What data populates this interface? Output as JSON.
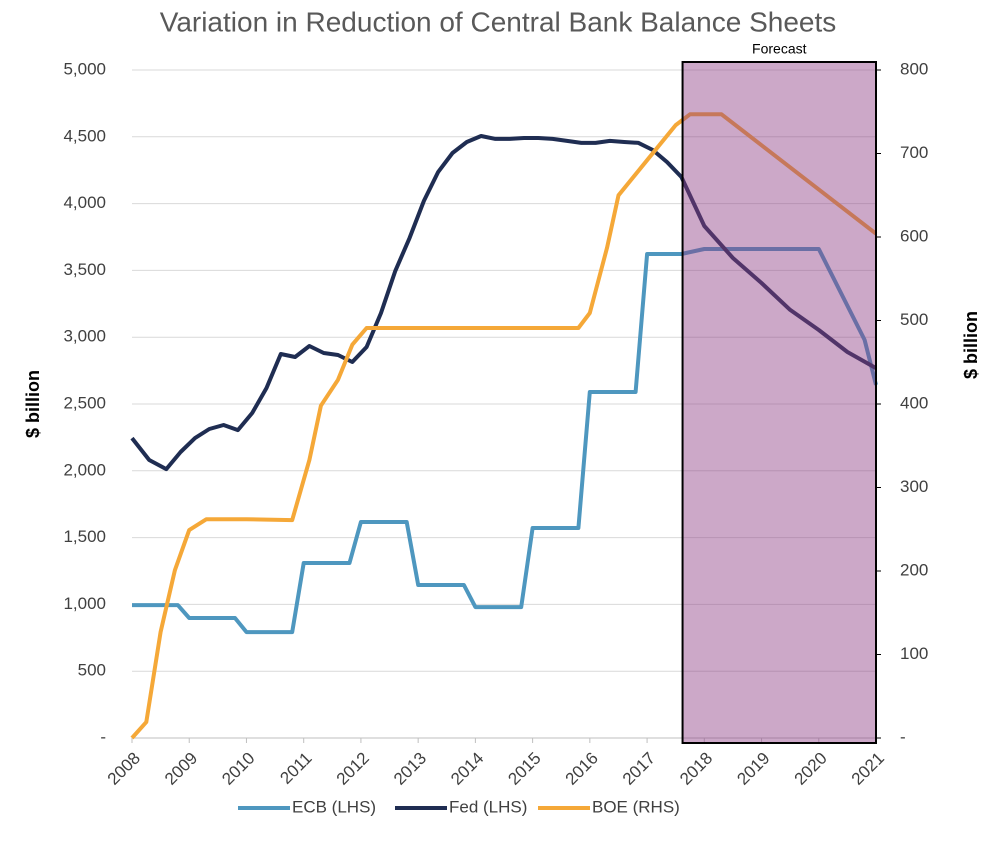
{
  "chart_data": {
    "type": "line",
    "title": "Variation in Reduction of Central Bank Balance Sheets",
    "ylabel": "$ billion",
    "y2label": "$ billion",
    "xlim": [
      2008,
      2021
    ],
    "xticks": [
      2008,
      2009,
      2010,
      2011,
      2012,
      2013,
      2014,
      2015,
      2016,
      2017,
      2018,
      2019,
      2020,
      2021
    ],
    "ylim": [
      0,
      5000
    ],
    "yticks": [
      {
        "value": 0,
        "label": "-"
      },
      500,
      {
        "value": 1000,
        "label": "1,000"
      },
      {
        "value": 1500,
        "label": "1,500"
      },
      {
        "value": 2000,
        "label": "2,000"
      },
      {
        "value": 2500,
        "label": "2,500"
      },
      {
        "value": 3000,
        "label": "3,000"
      },
      {
        "value": 3500,
        "label": "3,500"
      },
      {
        "value": 4000,
        "label": "4,000"
      },
      {
        "value": 4500,
        "label": "4,500"
      },
      {
        "value": 5000,
        "label": "5,000"
      }
    ],
    "y2lim": [
      0,
      800
    ],
    "y2ticks": [
      {
        "value": 0,
        "label": "-"
      },
      100,
      200,
      300,
      400,
      500,
      600,
      700,
      800
    ],
    "grid": true,
    "legend": "bottom",
    "forecast": {
      "label": "Forecast",
      "x_start": 2017.62,
      "color": "#8e3f86"
    },
    "series": [
      {
        "name": "ECB (LHS)",
        "color": "#4e97bf",
        "x": [
          2008.0,
          2008.8,
          2009.0,
          2009.8,
          2010.0,
          2010.8,
          2011.0,
          2011.8,
          2012.0,
          2012.8,
          2013.0,
          2013.8,
          2014.0,
          2014.8,
          2015.0,
          2015.8,
          2016.0,
          2016.8,
          2017.0,
          2017.6,
          2018.0,
          2020.0,
          2020.8,
          2021.0
        ],
        "values": [
          995,
          995,
          898,
          898,
          793,
          793,
          1310,
          1310,
          1617,
          1617,
          1145,
          1145,
          980,
          980,
          1572,
          1572,
          2590,
          2590,
          3623,
          3623,
          3660,
          3660,
          2980,
          2643
        ]
      },
      {
        "name": "Fed (LHS)",
        "color": "#1f2d52",
        "x": [
          2008.0,
          2008.3,
          2008.6,
          2008.85,
          2009.1,
          2009.35,
          2009.6,
          2009.85,
          2010.1,
          2010.35,
          2010.6,
          2010.85,
          2011.1,
          2011.35,
          2011.6,
          2011.85,
          2012.1,
          2012.35,
          2012.6,
          2012.85,
          2013.1,
          2013.35,
          2013.6,
          2013.85,
          2014.1,
          2014.35,
          2014.6,
          2014.85,
          2015.1,
          2015.35,
          2015.6,
          2015.85,
          2016.1,
          2016.35,
          2016.6,
          2016.85,
          2017.1,
          2017.35,
          2017.6,
          2018.0,
          2018.5,
          2019.0,
          2019.5,
          2020.0,
          2020.5,
          2021.0
        ],
        "values": [
          2245,
          2081,
          2013,
          2141,
          2245,
          2313,
          2343,
          2305,
          2433,
          2620,
          2874,
          2852,
          2934,
          2882,
          2867,
          2814,
          2927,
          3181,
          3496,
          3743,
          4020,
          4237,
          4379,
          4461,
          4506,
          4484,
          4484,
          4491,
          4491,
          4484,
          4469,
          4454,
          4454,
          4469,
          4461,
          4454,
          4401,
          4311,
          4199,
          3832,
          3593,
          3406,
          3204,
          3054,
          2889,
          2769
        ]
      },
      {
        "name": "BOE (RHS)",
        "color": "#f5a838",
        "axis": "y2",
        "x": [
          2008.0,
          2008.25,
          2008.5,
          2008.75,
          2009.0,
          2009.3,
          2010.0,
          2010.8,
          2011.1,
          2011.3,
          2011.6,
          2011.85,
          2012.1,
          2015.8,
          2016.0,
          2016.3,
          2016.5,
          2017.0,
          2017.5,
          2017.75,
          2018.3,
          2021.0
        ],
        "values": [
          0,
          19,
          127,
          201,
          249,
          262,
          262,
          261,
          333,
          398,
          429,
          471,
          491,
          491,
          509,
          587,
          650,
          692,
          734,
          747,
          747,
          604
        ]
      }
    ]
  }
}
